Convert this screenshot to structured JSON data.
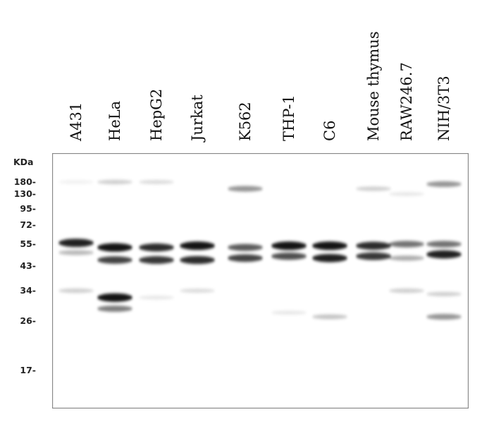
{
  "unit_label": "KDa",
  "markers": [
    "180-",
    "130-",
    "95-",
    "72-",
    "55-",
    "43-",
    "34-",
    "26-",
    "17-"
  ],
  "lanes": [
    {
      "label": "A431",
      "bands": [
        {
          "kda": 56,
          "intensity": 0.95
        },
        {
          "kda": 50,
          "intensity": 0.3
        },
        {
          "kda": 34,
          "intensity": 0.2
        },
        {
          "kda": 180,
          "intensity": 0.06
        }
      ]
    },
    {
      "label": "HeLa",
      "bands": [
        {
          "kda": 53,
          "intensity": 1.0
        },
        {
          "kda": 46,
          "intensity": 0.8
        },
        {
          "kda": 32,
          "intensity": 1.0
        },
        {
          "kda": 29,
          "intensity": 0.55
        },
        {
          "kda": 180,
          "intensity": 0.2
        }
      ]
    },
    {
      "label": "HepG2",
      "bands": [
        {
          "kda": 53,
          "intensity": 0.9
        },
        {
          "kda": 46,
          "intensity": 0.85
        },
        {
          "kda": 180,
          "intensity": 0.15
        },
        {
          "kda": 32,
          "intensity": 0.1
        }
      ]
    },
    {
      "label": "Jurkat",
      "bands": [
        {
          "kda": 54,
          "intensity": 1.0
        },
        {
          "kda": 46,
          "intensity": 0.9
        },
        {
          "kda": 34,
          "intensity": 0.15
        }
      ]
    },
    {
      "label": "K562",
      "bands": [
        {
          "kda": 150,
          "intensity": 0.45
        },
        {
          "kda": 53,
          "intensity": 0.7
        },
        {
          "kda": 47,
          "intensity": 0.8
        }
      ]
    },
    {
      "label": "THP-1",
      "bands": [
        {
          "kda": 54,
          "intensity": 1.0
        },
        {
          "kda": 48,
          "intensity": 0.75
        },
        {
          "kda": 28,
          "intensity": 0.1
        }
      ]
    },
    {
      "label": "C6",
      "bands": [
        {
          "kda": 54,
          "intensity": 1.0
        },
        {
          "kda": 47,
          "intensity": 0.95
        },
        {
          "kda": 27,
          "intensity": 0.25
        }
      ]
    },
    {
      "label": "Mouse thymus",
      "bands": [
        {
          "kda": 54,
          "intensity": 0.9
        },
        {
          "kda": 48,
          "intensity": 0.85
        },
        {
          "kda": 150,
          "intensity": 0.2
        }
      ]
    },
    {
      "label": "RAW246.7",
      "bands": [
        {
          "kda": 55,
          "intensity": 0.6
        },
        {
          "kda": 47,
          "intensity": 0.35
        },
        {
          "kda": 34,
          "intensity": 0.2
        },
        {
          "kda": 130,
          "intensity": 0.1
        }
      ]
    },
    {
      "label": "NIH/3T3",
      "bands": [
        {
          "kda": 170,
          "intensity": 0.45
        },
        {
          "kda": 55,
          "intensity": 0.6
        },
        {
          "kda": 49,
          "intensity": 0.95
        },
        {
          "kda": 33,
          "intensity": 0.2
        },
        {
          "kda": 27,
          "intensity": 0.45
        }
      ]
    }
  ]
}
